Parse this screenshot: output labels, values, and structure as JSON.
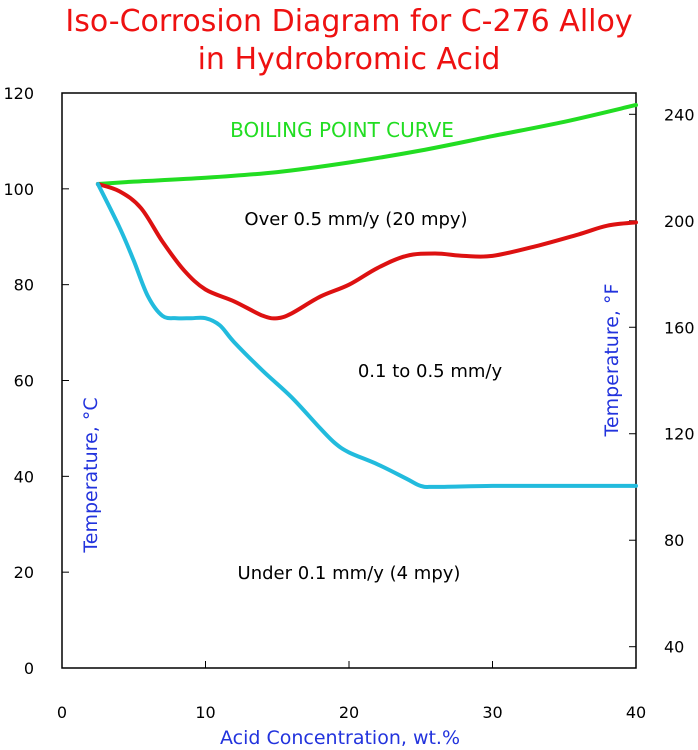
{
  "chart_data": {
    "type": "line",
    "title_line1": "Iso-Corrosion Diagram for C-276 Alloy",
    "title_line2": "in Hydrobromic Acid",
    "xlabel": "Acid Concentration, wt.%",
    "ylabel_left": "Temperature, °C",
    "ylabel_right": "Temperature, °F",
    "xlim": [
      0,
      40
    ],
    "ylim": [
      0,
      120
    ],
    "x_ticks": [
      0,
      10,
      20,
      30,
      40
    ],
    "y_ticks_left": [
      0,
      20,
      40,
      60,
      80,
      100,
      120
    ],
    "y_ticks_right": [
      40,
      80,
      120,
      160,
      200,
      240
    ],
    "series": [
      {
        "name": "BOILING POINT CURVE",
        "color": "#22dd22",
        "x": [
          2.5,
          5,
          10,
          15,
          20,
          25,
          30,
          35,
          40
        ],
        "y": [
          101,
          101.5,
          102.3,
          103.5,
          105.5,
          108,
          111,
          114,
          117.5
        ]
      },
      {
        "name": "0.5 mm/y",
        "color": "#dd1111",
        "x": [
          2.5,
          4,
          5.5,
          7,
          8.5,
          10,
          12,
          14,
          15,
          16,
          18,
          20,
          22,
          24,
          26,
          28,
          30,
          33,
          36,
          38,
          40
        ],
        "y": [
          101,
          99.5,
          96,
          89,
          83,
          79,
          76.5,
          73.5,
          73,
          74,
          77.5,
          80,
          83.5,
          86,
          86.5,
          86,
          86,
          88,
          90.5,
          92.3,
          93
        ]
      },
      {
        "name": "0.1 mm/y",
        "color": "#22bbdd",
        "x": [
          2.5,
          4,
          5,
          6,
          7,
          8,
          9,
          10,
          11,
          12,
          14,
          16,
          18,
          19,
          20,
          22,
          24,
          25,
          26,
          30,
          35,
          40
        ],
        "y": [
          101,
          92,
          85,
          77.5,
          73.5,
          73,
          73,
          73,
          71.5,
          68,
          62,
          56.5,
          50,
          47,
          45,
          42.5,
          39.5,
          38,
          37.8,
          38,
          38,
          38
        ]
      }
    ],
    "annotations": {
      "boiling_label": "BOILING POINT CURVE",
      "over_label": "Over 0.5 mm/y (20 mpy)",
      "mid_label": "0.1 to 0.5 mm/y",
      "under_label": "Under 0.1 mm/y (4 mpy)"
    }
  }
}
